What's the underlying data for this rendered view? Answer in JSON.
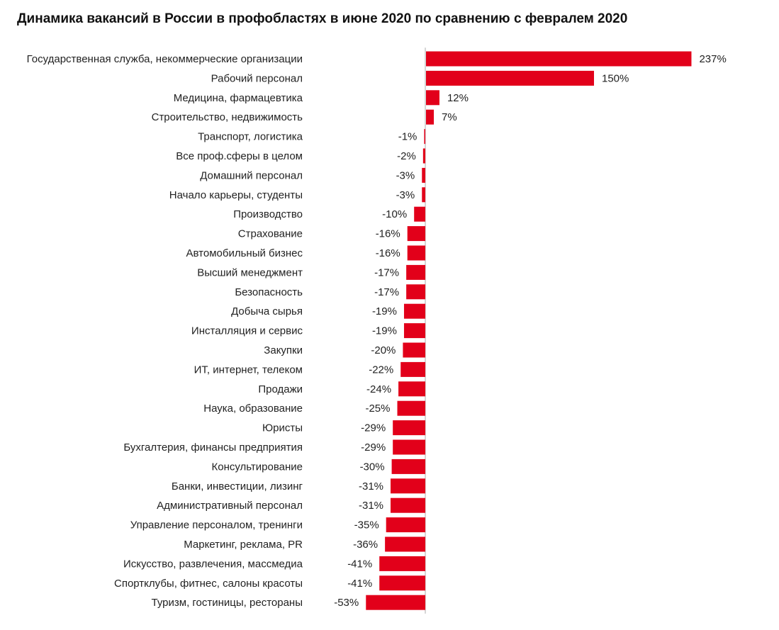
{
  "chart_data": {
    "type": "bar",
    "orientation": "horizontal",
    "title": "Динамика вакансий в России в профобластях в июне 2020 по сравнению с февралем 2020",
    "xlabel": "",
    "ylabel": "",
    "unit": "%",
    "grid": false,
    "legend": "none",
    "xlim": [
      -53,
      237
    ],
    "bar_color": "#e2001a",
    "axis_color": "#c8c8c8",
    "categories": [
      "Государственная служба, некоммерческие организации",
      "Рабочий персонал",
      "Медицина, фармацевтика",
      "Строительство, недвижимость",
      "Транспорт, логистика",
      "Все проф.сферы в целом",
      "Домашний персонал",
      "Начало карьеры, студенты",
      "Производство",
      "Страхование",
      "Автомобильный бизнес",
      "Высший менеджмент",
      "Безопасность",
      "Добыча сырья",
      "Инсталляция и сервис",
      "Закупки",
      "ИТ, интернет, телеком",
      "Продажи",
      "Наука, образование",
      "Юристы",
      "Бухгалтерия, финансы предприятия",
      "Консультирование",
      "Банки, инвестиции, лизинг",
      "Административный персонал",
      "Управление персоналом, тренинги",
      "Маркетинг, реклама, PR",
      "Искусство, развлечения, массмедиа",
      "Спортклубы, фитнес, салоны красоты",
      "Туризм, гостиницы, рестораны"
    ],
    "values": [
      237,
      150,
      12,
      7,
      -1,
      -2,
      -3,
      -3,
      -10,
      -16,
      -16,
      -17,
      -17,
      -19,
      -19,
      -20,
      -22,
      -24,
      -25,
      -29,
      -29,
      -30,
      -31,
      -31,
      -35,
      -36,
      -41,
      -41,
      -53
    ],
    "value_labels": [
      "237%",
      "150%",
      "12%",
      "7%",
      "-1%",
      "-2%",
      "-3%",
      "-3%",
      "-10%",
      "-16%",
      "-16%",
      "-17%",
      "-17%",
      "-19%",
      "-19%",
      "-20%",
      "-22%",
      "-24%",
      "-25%",
      "-29%",
      "-29%",
      "-30%",
      "-31%",
      "-31%",
      "-35%",
      "-36%",
      "-41%",
      "-41%",
      "-53%"
    ]
  }
}
